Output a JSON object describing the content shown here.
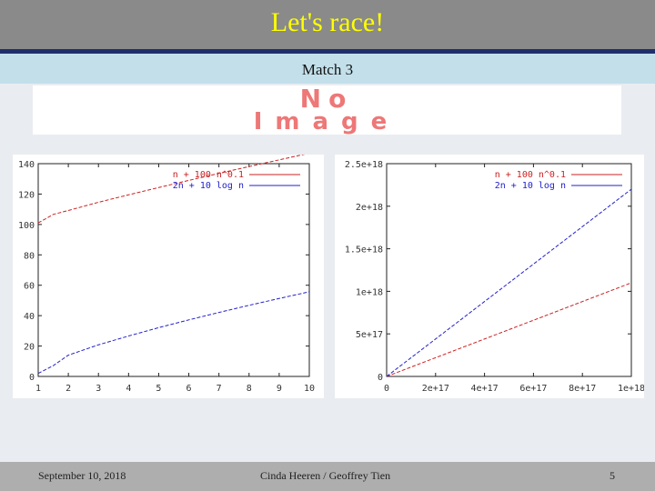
{
  "slide": {
    "title": "Let's race!",
    "subtitle": "Match 3",
    "placeholder_image": {
      "text_top": "No",
      "text_bottom": "Image"
    }
  },
  "footer": {
    "date": "September 10, 2018",
    "author": "Cinda Heeren / Geoffrey Tien",
    "page": "5"
  },
  "chart_data": [
    {
      "type": "line",
      "title": "",
      "xlabel": "",
      "ylabel": "",
      "xlim": [
        1,
        10
      ],
      "ylim": [
        0,
        140
      ],
      "xticks": [
        "1",
        "2",
        "3",
        "4",
        "5",
        "6",
        "7",
        "8",
        "9",
        "10"
      ],
      "yticks": [
        "0",
        "20",
        "40",
        "60",
        "80",
        "100",
        "120",
        "140"
      ],
      "grid": false,
      "legend": "top-right",
      "series": [
        {
          "name": "n + 100 n^0.1",
          "color": "#cc2222",
          "x": [
            1,
            1.5,
            2,
            3,
            4,
            5,
            6,
            7,
            8,
            9,
            10
          ],
          "y": [
            101,
            106.6,
            109.2,
            114.6,
            119.5,
            124.3,
            129.0,
            133.6,
            138.1,
            142.5,
            146.9
          ]
        },
        {
          "name": "2n + 10 log n",
          "color": "#2222cc",
          "x": [
            1,
            1.5,
            2,
            3,
            4,
            5,
            6,
            7,
            8,
            9,
            10
          ],
          "y": [
            2,
            7.1,
            14,
            20.8,
            26.6,
            32.1,
            37.2,
            42.1,
            46.8,
            51.3,
            55.7
          ]
        }
      ]
    },
    {
      "type": "line",
      "title": "",
      "xlabel": "",
      "ylabel": "",
      "xlim": [
        0,
        1e+18
      ],
      "ylim": [
        0,
        2.5e+18
      ],
      "xticks": [
        "0",
        "2e+17",
        "4e+17",
        "6e+17",
        "8e+17",
        "1e+18"
      ],
      "yticks": [
        "0",
        "5e+17",
        "1e+18",
        "1.5e+18",
        "2e+18",
        "2.5e+18"
      ],
      "grid": false,
      "legend": "top-right",
      "series": [
        {
          "name": "n + 100 n^0.1",
          "color": "#cc2222",
          "x": [
            0,
            1e+18
          ],
          "y": [
            0,
            1.1e+18
          ]
        },
        {
          "name": "2n + 10 log n",
          "color": "#2222cc",
          "x": [
            0,
            1e+18
          ],
          "y": [
            0,
            2.2e+18
          ]
        }
      ]
    }
  ]
}
